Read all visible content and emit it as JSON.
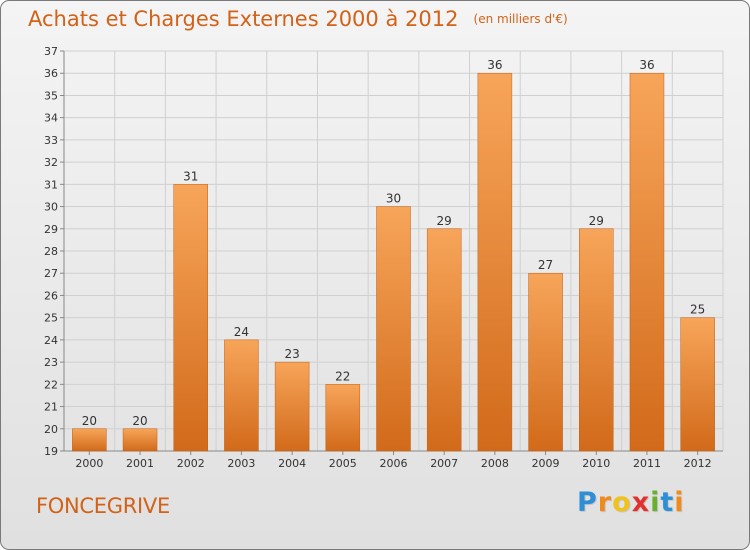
{
  "header": {
    "title": "Achats et Charges Externes 2000 à 2012",
    "unit": "(en milliers d'€)"
  },
  "footer": {
    "place": "FONCEGRIVE",
    "brand_letters": [
      "P",
      "r",
      "o",
      "x",
      "i",
      "t",
      "i"
    ],
    "brand_colors": [
      "#2f8fd5",
      "#f08a1c",
      "#f0c21c",
      "#e2312d",
      "#6ab02f",
      "#2f8fd5",
      "#f08a1c"
    ]
  },
  "chart_data": {
    "type": "bar",
    "categories": [
      "2000",
      "2001",
      "2002",
      "2003",
      "2004",
      "2005",
      "2006",
      "2007",
      "2008",
      "2009",
      "2010",
      "2011",
      "2012"
    ],
    "values": [
      20,
      20,
      31,
      24,
      23,
      22,
      30,
      29,
      36,
      27,
      29,
      36,
      25
    ],
    "ylim": [
      19,
      37
    ],
    "yticks": [
      19,
      20,
      21,
      22,
      23,
      24,
      25,
      26,
      27,
      28,
      29,
      30,
      31,
      32,
      33,
      34,
      35,
      36,
      37
    ],
    "grid": true,
    "bar_color_top": "#f7a55a",
    "bar_color_bottom": "#d26a1a",
    "text_color": "#333333"
  }
}
